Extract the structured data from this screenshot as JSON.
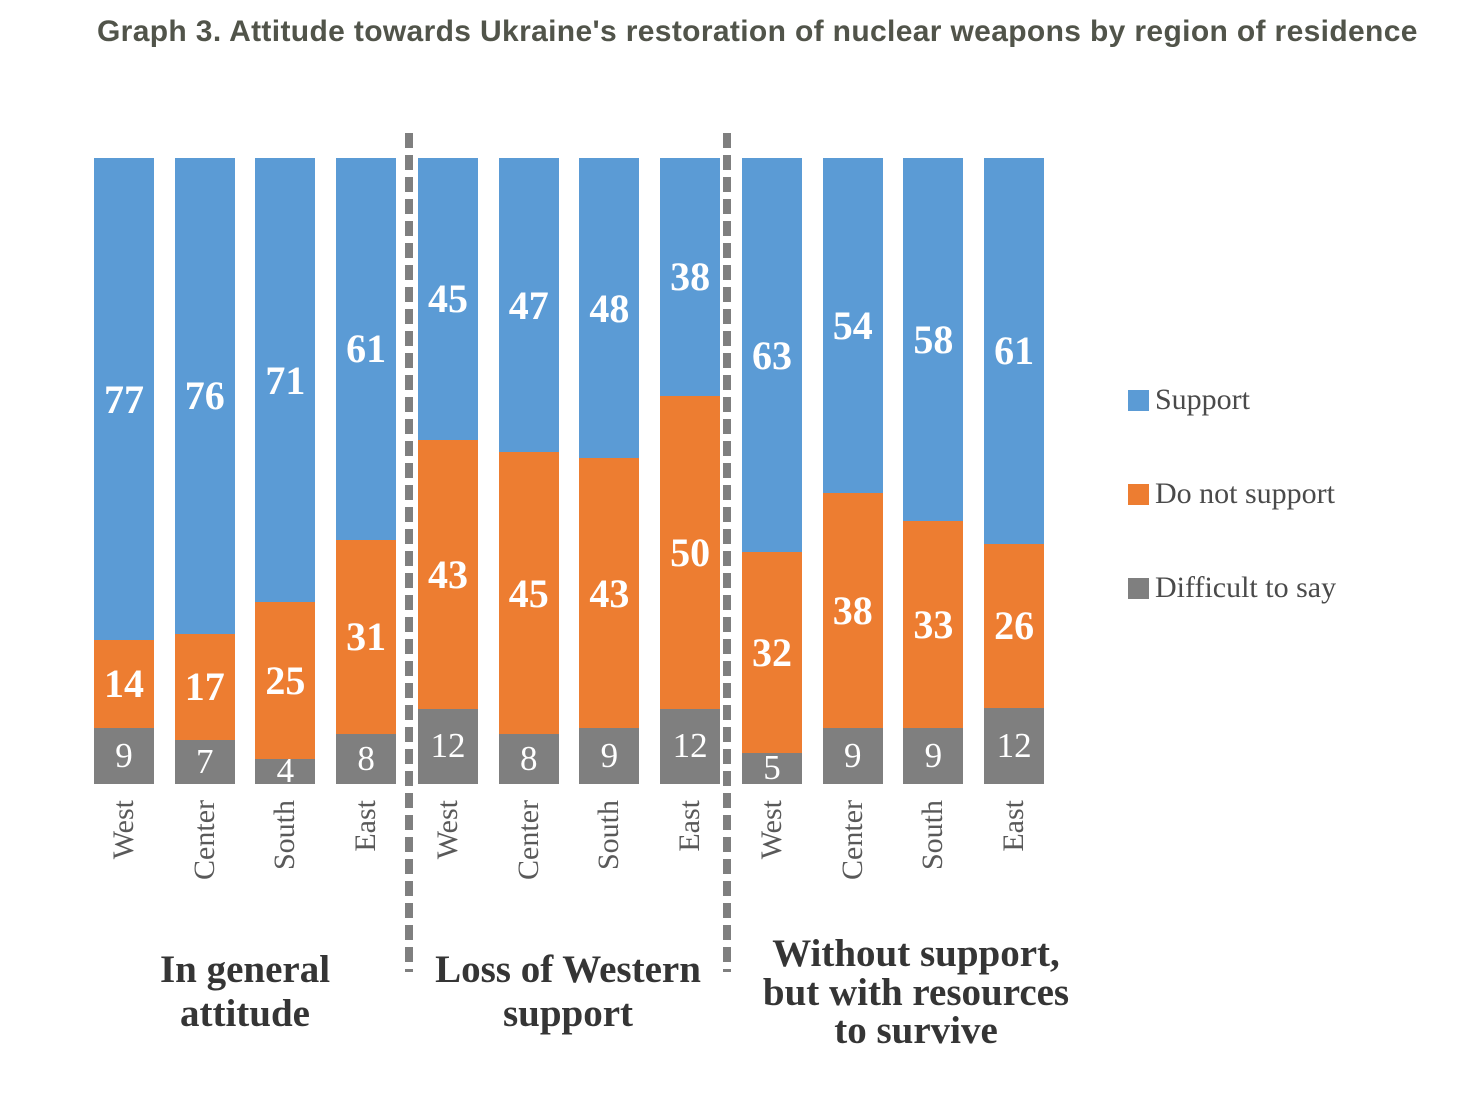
{
  "title": "Graph 3. Attitude towards Ukraine's restoration of nuclear weapons by region of residence",
  "colors": {
    "support": "#5B9BD5",
    "do_not_support": "#ED7D31",
    "difficult_to_say": "#7F7F7F",
    "divider": "#7F7F7F"
  },
  "legend": {
    "items": [
      {
        "label": "Support",
        "color": "#5B9BD5"
      },
      {
        "label": "Do not support",
        "color": "#ED7D31"
      },
      {
        "label": "Difficult to say",
        "color": "#7F7F7F"
      }
    ]
  },
  "chart_data": {
    "type": "bar",
    "subtype": "100%-stacked-column",
    "title": "Graph 3. Attitude towards Ukraine's restoration of nuclear weapons by region of residence",
    "ylim": [
      0,
      100
    ],
    "grid": false,
    "legend_position": "right",
    "series_names": [
      "Support",
      "Do not support",
      "Difficult to say"
    ],
    "groups": [
      {
        "label": "In general attitude",
        "label_lines": [
          "In general",
          "attitude"
        ],
        "categories": [
          "West",
          "Center",
          "South",
          "East"
        ],
        "series": [
          {
            "name": "Support",
            "values": [
              77,
              76,
              71,
              61
            ]
          },
          {
            "name": "Do not support",
            "values": [
              14,
              17,
              25,
              31
            ]
          },
          {
            "name": "Difficult to say",
            "values": [
              9,
              7,
              4,
              8
            ]
          }
        ]
      },
      {
        "label": "Loss of Western support",
        "label_lines": [
          "Loss of Western",
          "support"
        ],
        "categories": [
          "West",
          "Center",
          "South",
          "East"
        ],
        "series": [
          {
            "name": "Support",
            "values": [
              45,
              47,
              48,
              38
            ]
          },
          {
            "name": "Do not support",
            "values": [
              43,
              45,
              43,
              50
            ]
          },
          {
            "name": "Difficult to say",
            "values": [
              12,
              8,
              9,
              12
            ]
          }
        ]
      },
      {
        "label": "Without support, but with resources to survive",
        "label_lines": [
          "Without support,",
          "but with resources",
          "to survive"
        ],
        "categories": [
          "West",
          "Center",
          "South",
          "East"
        ],
        "series": [
          {
            "name": "Support",
            "values": [
              63,
              54,
              58,
              61
            ]
          },
          {
            "name": "Do not support",
            "values": [
              32,
              38,
              33,
              26
            ]
          },
          {
            "name": "Difficult to say",
            "values": [
              5,
              9,
              9,
              12
            ]
          }
        ]
      }
    ]
  }
}
